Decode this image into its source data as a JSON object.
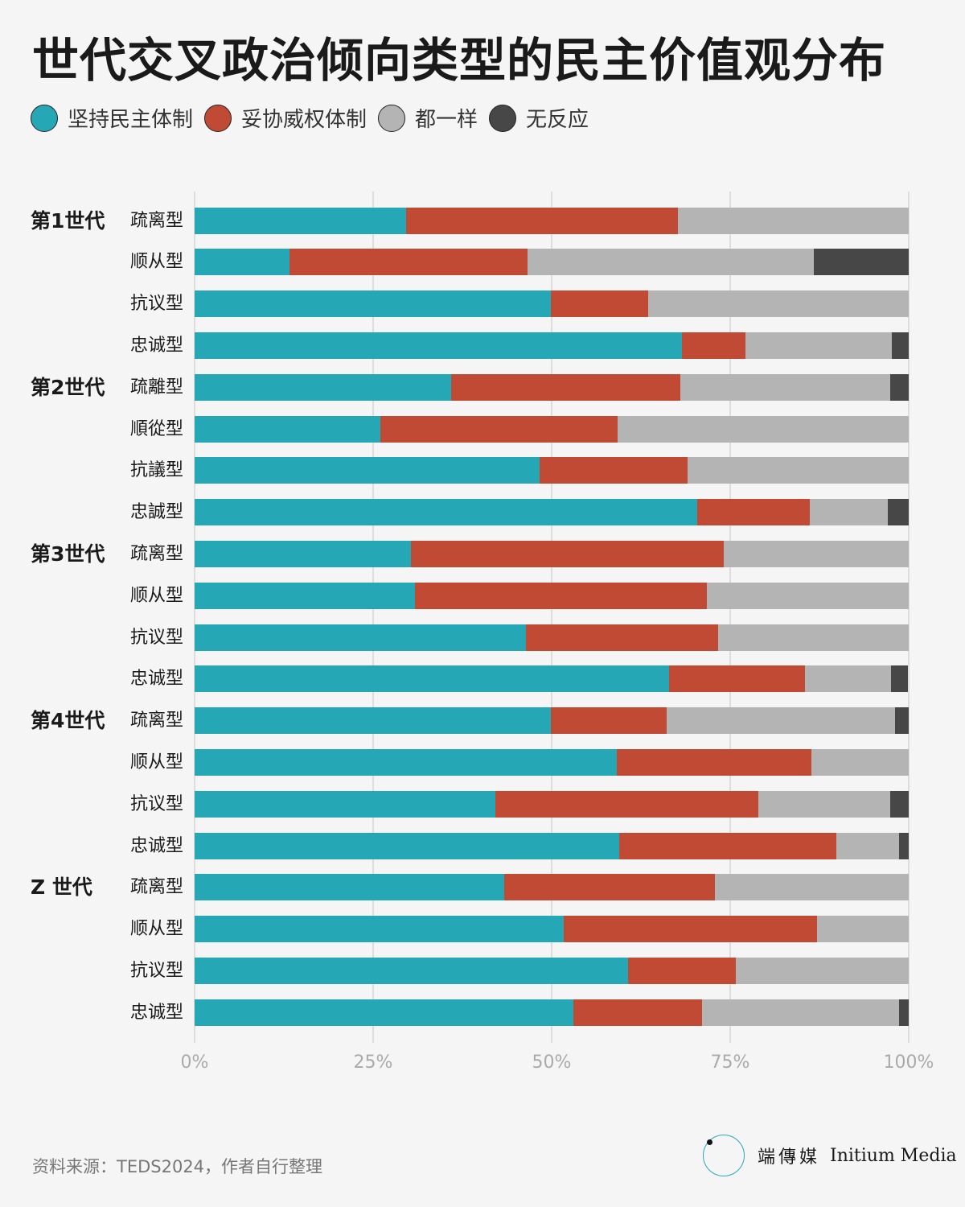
{
  "title": "世代交叉政治倾向类型的民主价值观分布",
  "legend": [
    {
      "label": "坚持民主体制",
      "color": "#26a7b5"
    },
    {
      "label": "妥协威权体制",
      "color": "#c04a34"
    },
    {
      "label": "都一样",
      "color": "#b4b4b4"
    },
    {
      "label": "无反应",
      "color": "#474747"
    }
  ],
  "chart_data": {
    "type": "bar",
    "orientation": "horizontal",
    "stacked": true,
    "title": "世代交叉政治倾向类型的民主价值观分布",
    "xlim": [
      0,
      100
    ],
    "x_ticks": [
      "0%",
      "25%",
      "50%",
      "75%",
      "100%"
    ],
    "grid": true,
    "legend_position": "top-left",
    "groups": [
      "第1世代",
      "第2世代",
      "第3世代",
      "第4世代",
      "Z 世代"
    ],
    "categories": [
      "疏离型",
      "顺从型",
      "抗议型",
      "忠诚型",
      "疏離型",
      "順從型",
      "抗議型",
      "忠誠型",
      "疏离型",
      "顺从型",
      "抗议型",
      "忠诚型",
      "疏离型",
      "顺从型",
      "抗议型",
      "忠诚型",
      "疏离型",
      "顺从型",
      "抗议型",
      "忠诚型"
    ],
    "category_group": [
      0,
      0,
      0,
      0,
      1,
      1,
      1,
      1,
      2,
      2,
      2,
      2,
      3,
      3,
      3,
      3,
      4,
      4,
      4,
      4
    ],
    "series": [
      {
        "name": "坚持民主体制",
        "values": [
          29.6,
          13.3,
          49.9,
          68.2,
          35.9,
          26.0,
          48.3,
          70.4,
          30.3,
          30.9,
          46.4,
          66.4,
          49.9,
          59.1,
          42.1,
          59.5,
          43.4,
          51.7,
          60.7,
          53.0
        ]
      },
      {
        "name": "妥协威权体制",
        "values": [
          38.1,
          33.3,
          13.6,
          8.9,
          32.1,
          33.2,
          20.7,
          15.8,
          43.8,
          40.9,
          26.9,
          19.1,
          16.2,
          27.3,
          36.8,
          30.4,
          29.5,
          35.5,
          15.1,
          18.1
        ]
      },
      {
        "name": "都一样",
        "values": [
          32.3,
          40.1,
          36.5,
          20.5,
          29.4,
          40.8,
          31.0,
          10.9,
          25.9,
          28.3,
          26.7,
          12.0,
          32.0,
          13.6,
          18.5,
          8.8,
          27.1,
          12.8,
          24.2,
          27.5
        ]
      },
      {
        "name": "无反应",
        "values": [
          0,
          13.3,
          0,
          2.4,
          2.6,
          0,
          0,
          2.9,
          0,
          0,
          0,
          2.4,
          1.9,
          0,
          2.6,
          1.4,
          0,
          0,
          0,
          1.4
        ]
      }
    ]
  },
  "footer": {
    "source": "资料来源：TEDS2024，作者自行整理",
    "logo_cn": "端傳媒",
    "logo_en": "Initium Media",
    "logo_glyph": "ⵊ耑"
  }
}
